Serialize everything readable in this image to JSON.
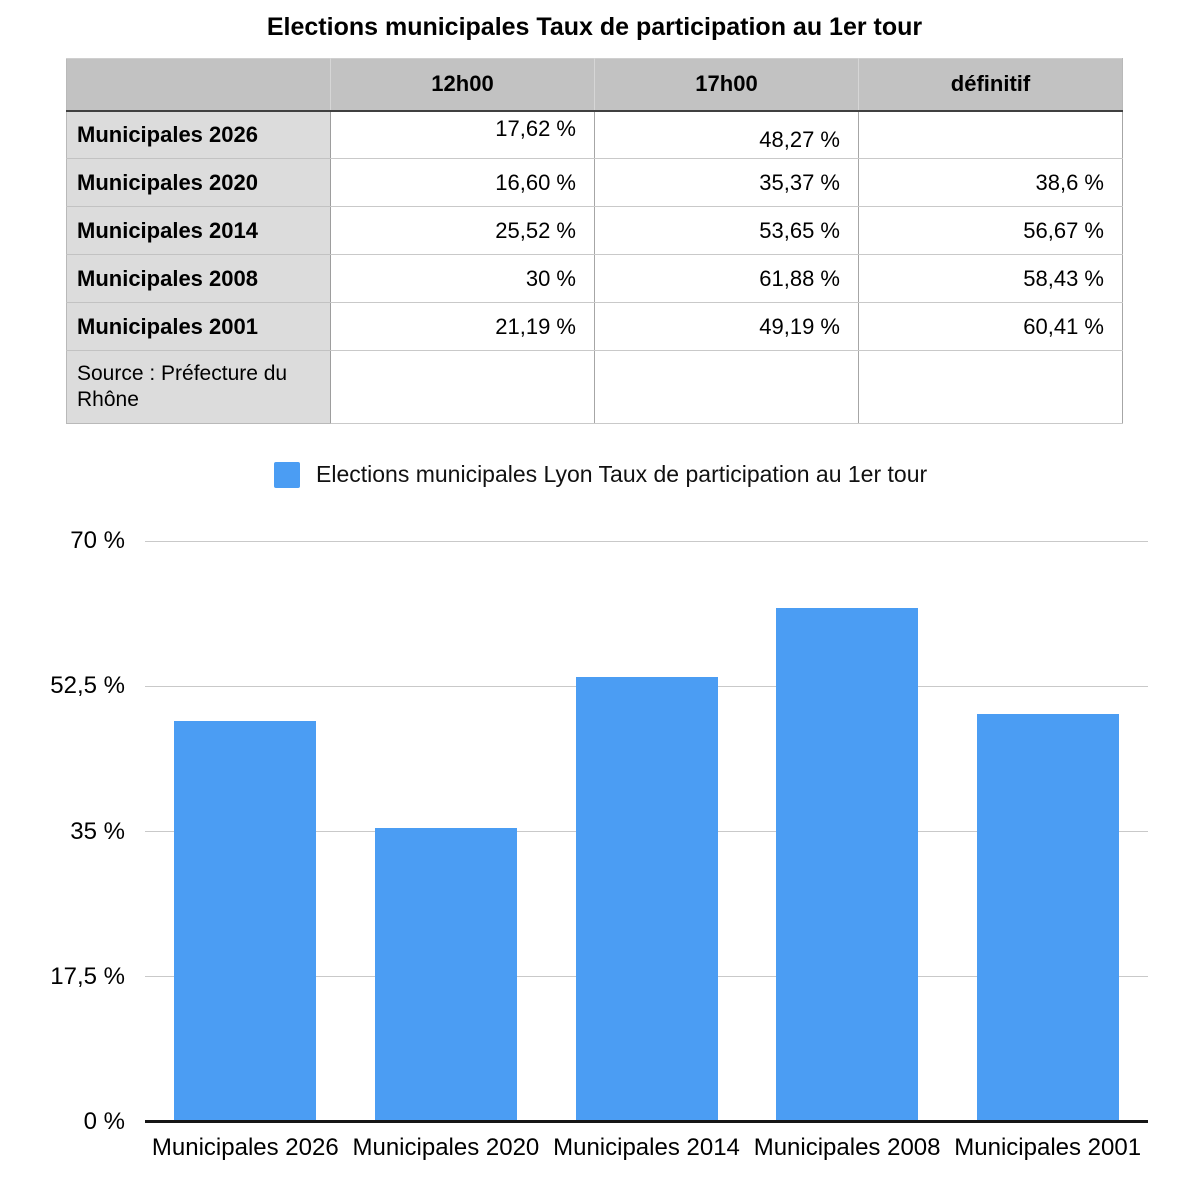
{
  "page_title": "Elections municipales Taux de participation au 1er tour",
  "table": {
    "headers": [
      "",
      "12h00",
      "17h00",
      "définitif"
    ],
    "rows": [
      {
        "label": "Municipales 2026",
        "values": [
          "17,62 %",
          "48,27 %",
          ""
        ]
      },
      {
        "label": "Municipales 2020",
        "values": [
          "16,60 %",
          "35,37 %",
          "38,6 %"
        ]
      },
      {
        "label": "Municipales 2014",
        "values": [
          "25,52 %",
          "53,65 %",
          "56,67 %"
        ]
      },
      {
        "label": "Municipales 2008",
        "values": [
          "30 %",
          "61,88 %",
          "58,43 %"
        ]
      },
      {
        "label": "Municipales 2001",
        "values": [
          "21,19 %",
          "49,19 %",
          "60,41 %"
        ]
      }
    ],
    "source_note": "Source : Préfecture du Rhône"
  },
  "legend": {
    "label": "Elections municipales Lyon Taux de participation au 1er tour",
    "swatch_color": "#4b9df3"
  },
  "chart_data": {
    "type": "bar",
    "title": "Elections municipales Lyon Taux de participation au 1er tour",
    "categories": [
      "Municipales 2026",
      "Municipales 2020",
      "Municipales 2014",
      "Municipales 2008",
      "Municipales 2001"
    ],
    "series": [
      {
        "name": "Elections municipales Lyon Taux de participation au 1er tour",
        "values": [
          48.27,
          35.37,
          53.65,
          61.88,
          49.19
        ]
      }
    ],
    "xlabel": "",
    "ylabel": "",
    "ylim": [
      0,
      70
    ],
    "yticks": [
      {
        "value": 0,
        "label": "0 %"
      },
      {
        "value": 17.5,
        "label": "17,5 %"
      },
      {
        "value": 35,
        "label": "35 %"
      },
      {
        "value": 52.5,
        "label": "52,5 %"
      },
      {
        "value": 70,
        "label": "70 %"
      }
    ],
    "grid": true,
    "legend_position": "top",
    "bar_color": "#4b9df3"
  },
  "colors": {
    "bar": "#4b9df3",
    "table_header_bg": "#c2c2c2",
    "table_label_bg": "#dcdcdc",
    "gridline": "#c9c9c9",
    "axis_line": "#151515"
  }
}
